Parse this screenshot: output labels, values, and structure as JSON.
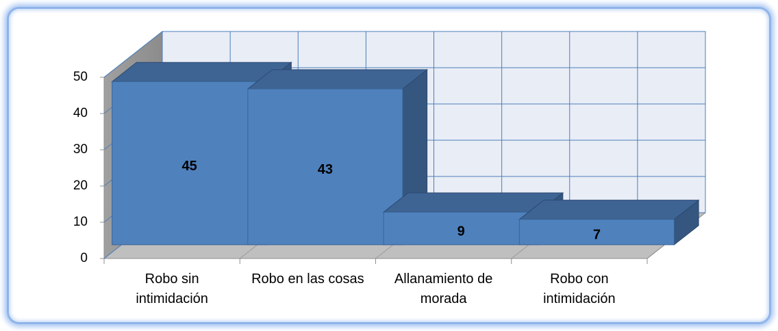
{
  "chart_data": {
    "type": "bar3d",
    "categories": [
      "Robo sin intimidación",
      "Robo en las cosas",
      "Allanamiento de morada",
      "Robo con intimidación"
    ],
    "values": [
      45,
      43,
      9,
      7
    ],
    "color": "#4f81bd",
    "ylim": [
      0,
      50
    ],
    "yticks": [
      0,
      10,
      20,
      30,
      40,
      50
    ],
    "grid": true
  }
}
